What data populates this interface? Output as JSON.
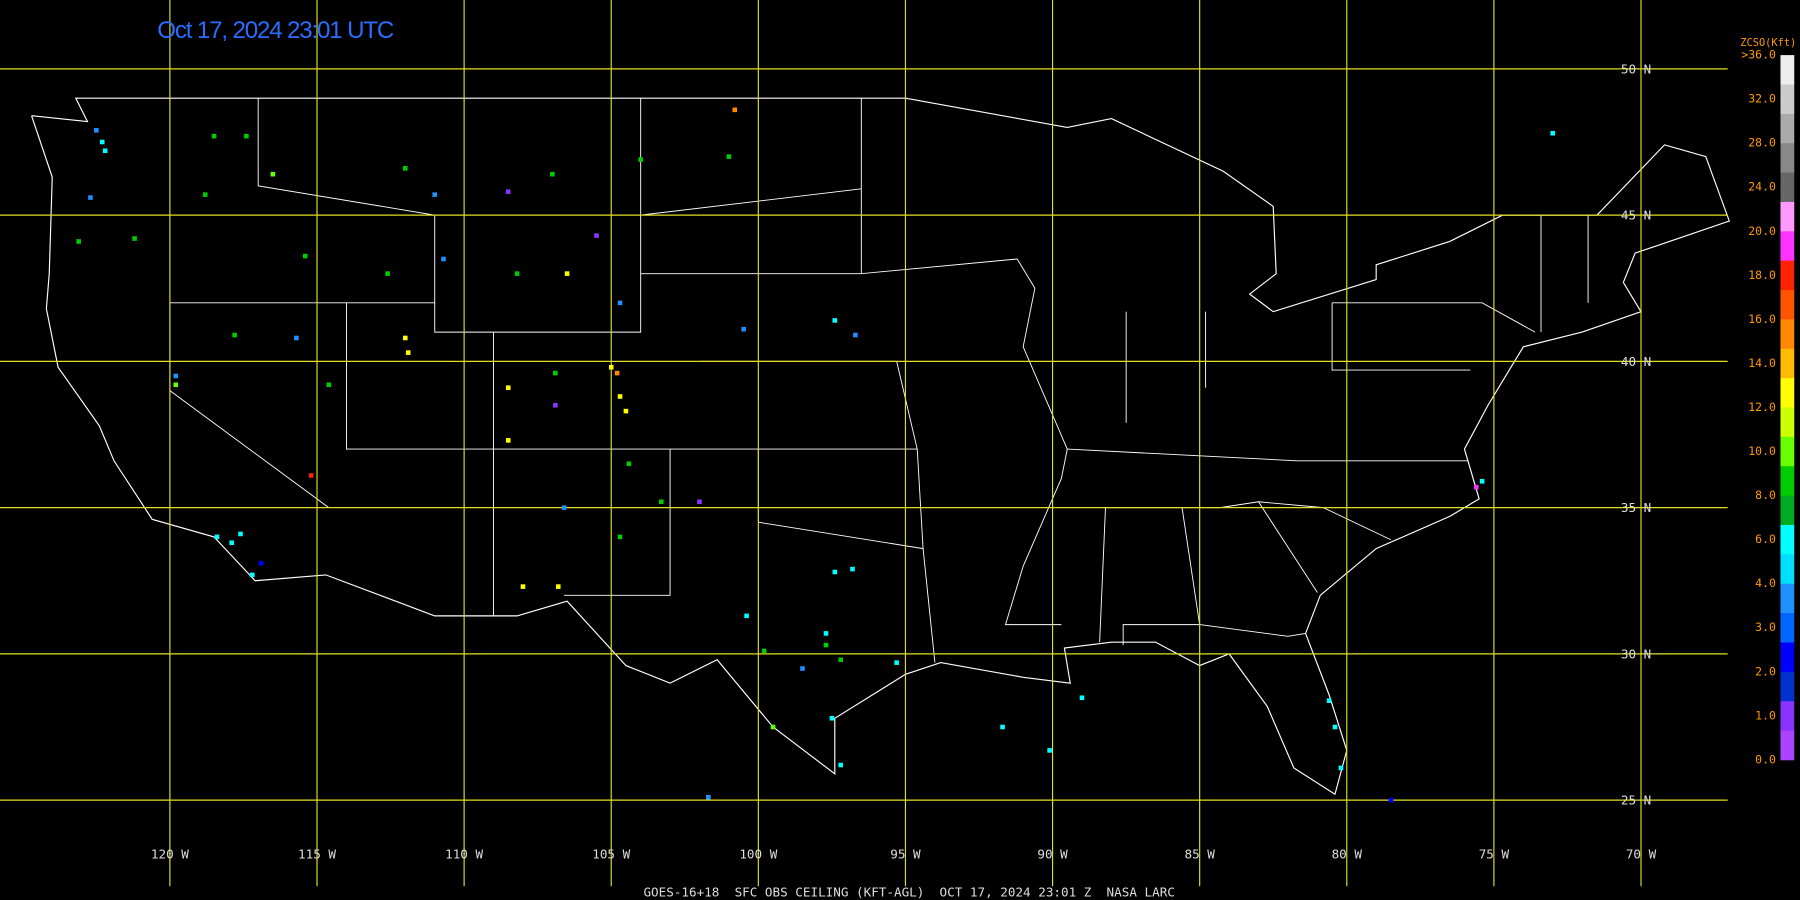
{
  "title": "Oct 17, 2024 23:01 UTC",
  "footer": "GOES-16+18  SFC OBS CEILING (KFT-AGL)  OCT 17, 2024 23:01 Z  NASA LARC",
  "lat_lines": [
    {
      "value": 50,
      "label": "50 N"
    },
    {
      "value": 45,
      "label": "45 N"
    },
    {
      "value": 40,
      "label": "40 N"
    },
    {
      "value": 35,
      "label": "35 N"
    },
    {
      "value": 30,
      "label": "30 N"
    },
    {
      "value": 25,
      "label": "25 N"
    }
  ],
  "lon_lines": [
    {
      "value": -120,
      "label": "120 W"
    },
    {
      "value": -115,
      "label": "115 W"
    },
    {
      "value": -110,
      "label": "110 W"
    },
    {
      "value": -105,
      "label": "105 W"
    },
    {
      "value": -100,
      "label": "100 W"
    },
    {
      "value": -95,
      "label": "95 W"
    },
    {
      "value": -90,
      "label": "90 W"
    },
    {
      "value": -85,
      "label": "85 W"
    },
    {
      "value": -80,
      "label": "80 W"
    },
    {
      "value": -75,
      "label": "75 W"
    },
    {
      "value": -70,
      "label": "70 W"
    }
  ],
  "colorbar": {
    "title": "ZCSO(Kft)",
    "labels": [
      ">36.0",
      "32.0",
      "28.0",
      "24.0",
      "20.0",
      "18.0",
      "16.0",
      "14.0",
      "12.0",
      "10.0",
      "8.0",
      "6.0",
      "4.0",
      "3.0",
      "2.0",
      "1.0",
      "0.0"
    ],
    "colors": [
      "#eeeeee",
      "#cccccc",
      "#aaaaaa",
      "#888888",
      "#666666",
      "#ff99ff",
      "#ff33ff",
      "#ff2200",
      "#ff5500",
      "#ff8800",
      "#ffbb00",
      "#ffff00",
      "#ccff00",
      "#66ff00",
      "#00cc00",
      "#00aa22",
      "#00ffff",
      "#00ddff",
      "#1e90ff",
      "#0066ff",
      "#0000ff",
      "#0033cc",
      "#8833ff",
      "#aa44ff"
    ]
  }
}
